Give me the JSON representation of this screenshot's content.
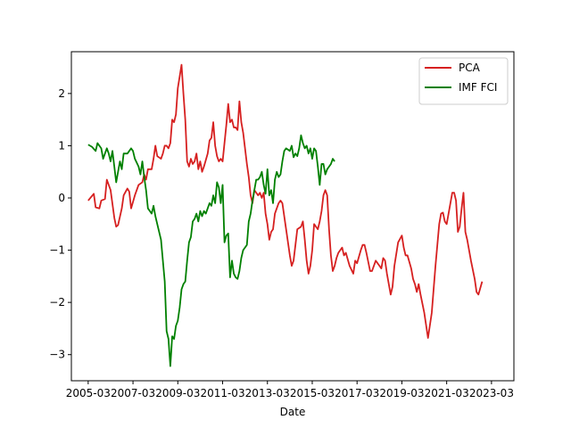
{
  "chart_data": {
    "type": "line",
    "title": "",
    "xlabel": "Date",
    "ylabel": "",
    "xlim": [
      "2004-06",
      "2024-03"
    ],
    "ylim": [
      -3.5,
      2.8
    ],
    "x_ticks": [
      "2005-03",
      "2007-03",
      "2009-03",
      "2011-03",
      "2013-03",
      "2015-03",
      "2017-03",
      "2019-03",
      "2021-03",
      "2023-03"
    ],
    "y_ticks": [
      -3,
      -2,
      -1,
      0,
      1,
      2
    ],
    "y_tick_labels": [
      "−3",
      "−2",
      "−1",
      "0",
      "1",
      "2"
    ],
    "grid": false,
    "legend_position": "top-right",
    "series": [
      {
        "name": "PCA",
        "color": "#d62020",
        "points": [
          [
            "2005-03",
            -0.05
          ],
          [
            "2005-06",
            0.08
          ],
          [
            "2005-07",
            -0.18
          ],
          [
            "2005-09",
            -0.2
          ],
          [
            "2005-10",
            -0.05
          ],
          [
            "2005-12",
            -0.02
          ],
          [
            "2006-01",
            0.35
          ],
          [
            "2006-03",
            0.15
          ],
          [
            "2006-05",
            -0.38
          ],
          [
            "2006-06",
            -0.55
          ],
          [
            "2006-07",
            -0.52
          ],
          [
            "2006-09",
            -0.2
          ],
          [
            "2006-10",
            0.05
          ],
          [
            "2006-12",
            0.18
          ],
          [
            "2007-01",
            0.12
          ],
          [
            "2007-02",
            -0.2
          ],
          [
            "2007-04",
            0.05
          ],
          [
            "2007-06",
            0.25
          ],
          [
            "2007-08",
            0.3
          ],
          [
            "2007-09",
            0.45
          ],
          [
            "2007-10",
            0.35
          ],
          [
            "2007-11",
            0.55
          ],
          [
            "2008-01",
            0.55
          ],
          [
            "2008-02",
            0.75
          ],
          [
            "2008-03",
            1.0
          ],
          [
            "2008-04",
            0.8
          ],
          [
            "2008-06",
            0.75
          ],
          [
            "2008-07",
            0.85
          ],
          [
            "2008-08",
            1.0
          ],
          [
            "2008-09",
            1.0
          ],
          [
            "2008-10",
            0.95
          ],
          [
            "2008-11",
            1.05
          ],
          [
            "2008-12",
            1.5
          ],
          [
            "2009-01",
            1.45
          ],
          [
            "2009-02",
            1.6
          ],
          [
            "2009-03",
            2.1
          ],
          [
            "2009-05",
            2.55
          ],
          [
            "2009-06",
            2.0
          ],
          [
            "2009-07",
            1.5
          ],
          [
            "2009-08",
            0.7
          ],
          [
            "2009-09",
            0.6
          ],
          [
            "2009-10",
            0.75
          ],
          [
            "2009-11",
            0.65
          ],
          [
            "2009-12",
            0.7
          ],
          [
            "2010-01",
            0.85
          ],
          [
            "2010-02",
            0.55
          ],
          [
            "2010-03",
            0.7
          ],
          [
            "2010-04",
            0.5
          ],
          [
            "2010-05",
            0.6
          ],
          [
            "2010-07",
            0.85
          ],
          [
            "2010-08",
            1.1
          ],
          [
            "2010-09",
            1.15
          ],
          [
            "2010-10",
            1.45
          ],
          [
            "2010-11",
            1.0
          ],
          [
            "2010-12",
            0.8
          ],
          [
            "2011-01",
            0.7
          ],
          [
            "2011-02",
            0.75
          ],
          [
            "2011-03",
            0.7
          ],
          [
            "2011-05",
            1.4
          ],
          [
            "2011-06",
            1.8
          ],
          [
            "2011-07",
            1.45
          ],
          [
            "2011-08",
            1.5
          ],
          [
            "2011-09",
            1.35
          ],
          [
            "2011-10",
            1.35
          ],
          [
            "2011-11",
            1.3
          ],
          [
            "2011-12",
            1.85
          ],
          [
            "2012-01",
            1.45
          ],
          [
            "2012-02",
            1.25
          ],
          [
            "2012-04",
            0.65
          ],
          [
            "2012-05",
            0.4
          ],
          [
            "2012-06",
            0.05
          ],
          [
            "2012-07",
            -0.1
          ],
          [
            "2012-08",
            0.15
          ],
          [
            "2012-09",
            0.1
          ],
          [
            "2012-10",
            0.05
          ],
          [
            "2012-11",
            0.1
          ],
          [
            "2012-12",
            0.0
          ],
          [
            "2013-01",
            0.1
          ],
          [
            "2013-02",
            -0.3
          ],
          [
            "2013-03",
            -0.5
          ],
          [
            "2013-04",
            -0.8
          ],
          [
            "2013-05",
            -0.65
          ],
          [
            "2013-06",
            -0.6
          ],
          [
            "2013-07",
            -0.3
          ],
          [
            "2013-09",
            -0.1
          ],
          [
            "2013-10",
            -0.05
          ],
          [
            "2013-11",
            -0.1
          ],
          [
            "2014-01",
            -0.6
          ],
          [
            "2014-03",
            -1.1
          ],
          [
            "2014-04",
            -1.3
          ],
          [
            "2014-05",
            -1.2
          ],
          [
            "2014-06",
            -0.9
          ],
          [
            "2014-07",
            -0.6
          ],
          [
            "2014-09",
            -0.55
          ],
          [
            "2014-10",
            -0.45
          ],
          [
            "2014-11",
            -0.8
          ],
          [
            "2014-12",
            -1.2
          ],
          [
            "2015-01",
            -1.45
          ],
          [
            "2015-02",
            -1.3
          ],
          [
            "2015-03",
            -1.0
          ],
          [
            "2015-04",
            -0.5
          ],
          [
            "2015-06",
            -0.6
          ],
          [
            "2015-07",
            -0.45
          ],
          [
            "2015-08",
            -0.25
          ],
          [
            "2015-09",
            0.05
          ],
          [
            "2015-10",
            0.15
          ],
          [
            "2015-11",
            0.05
          ],
          [
            "2015-12",
            -0.6
          ],
          [
            "2016-01",
            -1.1
          ],
          [
            "2016-02",
            -1.4
          ],
          [
            "2016-03",
            -1.3
          ],
          [
            "2016-04",
            -1.15
          ],
          [
            "2016-05",
            -1.05
          ],
          [
            "2016-07",
            -0.95
          ],
          [
            "2016-08",
            -1.1
          ],
          [
            "2016-09",
            -1.05
          ],
          [
            "2016-11",
            -1.3
          ],
          [
            "2017-01",
            -1.45
          ],
          [
            "2017-02",
            -1.2
          ],
          [
            "2017-03",
            -1.25
          ],
          [
            "2017-05",
            -1.0
          ],
          [
            "2017-06",
            -0.9
          ],
          [
            "2017-07",
            -0.9
          ],
          [
            "2017-08",
            -1.05
          ],
          [
            "2017-10",
            -1.4
          ],
          [
            "2017-11",
            -1.4
          ],
          [
            "2018-01",
            -1.2
          ],
          [
            "2018-03",
            -1.3
          ],
          [
            "2018-04",
            -1.35
          ],
          [
            "2018-05",
            -1.15
          ],
          [
            "2018-06",
            -1.2
          ],
          [
            "2018-07",
            -1.45
          ],
          [
            "2018-08",
            -1.65
          ],
          [
            "2018-09",
            -1.85
          ],
          [
            "2018-10",
            -1.7
          ],
          [
            "2018-11",
            -1.3
          ],
          [
            "2019-01",
            -0.85
          ],
          [
            "2019-03",
            -0.72
          ],
          [
            "2019-04",
            -0.95
          ],
          [
            "2019-05",
            -1.1
          ],
          [
            "2019-06",
            -1.1
          ],
          [
            "2019-08",
            -1.35
          ],
          [
            "2019-09",
            -1.55
          ],
          [
            "2019-10",
            -1.65
          ],
          [
            "2019-11",
            -1.8
          ],
          [
            "2019-12",
            -1.65
          ],
          [
            "2020-01",
            -1.85
          ],
          [
            "2020-03",
            -2.2
          ],
          [
            "2020-05",
            -2.68
          ],
          [
            "2020-07",
            -2.2
          ],
          [
            "2020-09",
            -1.3
          ],
          [
            "2020-11",
            -0.5
          ],
          [
            "2020-12",
            -0.3
          ],
          [
            "2021-01",
            -0.28
          ],
          [
            "2021-02",
            -0.45
          ],
          [
            "2021-03",
            -0.5
          ],
          [
            "2021-05",
            -0.1
          ],
          [
            "2021-06",
            0.1
          ],
          [
            "2021-07",
            0.1
          ],
          [
            "2021-08",
            -0.05
          ],
          [
            "2021-09",
            -0.65
          ],
          [
            "2021-10",
            -0.55
          ],
          [
            "2021-11",
            -0.2
          ],
          [
            "2021-12",
            0.1
          ],
          [
            "2022-01",
            -0.65
          ],
          [
            "2022-02",
            -0.8
          ],
          [
            "2022-04",
            -1.2
          ],
          [
            "2022-06",
            -1.55
          ],
          [
            "2022-07",
            -1.8
          ],
          [
            "2022-08",
            -1.85
          ],
          [
            "2022-10",
            -1.6
          ]
        ]
      },
      {
        "name": "IMF FCI",
        "color": "#008000",
        "points": [
          [
            "2005-03",
            1.02
          ],
          [
            "2005-05",
            0.98
          ],
          [
            "2005-07",
            0.9
          ],
          [
            "2005-08",
            1.05
          ],
          [
            "2005-10",
            0.95
          ],
          [
            "2005-11",
            0.75
          ],
          [
            "2006-01",
            0.95
          ],
          [
            "2006-02",
            0.85
          ],
          [
            "2006-03",
            0.7
          ],
          [
            "2006-04",
            0.9
          ],
          [
            "2006-05",
            0.6
          ],
          [
            "2006-06",
            0.3
          ],
          [
            "2006-08",
            0.7
          ],
          [
            "2006-09",
            0.55
          ],
          [
            "2006-10",
            0.85
          ],
          [
            "2006-12",
            0.85
          ],
          [
            "2007-01",
            0.9
          ],
          [
            "2007-02",
            0.95
          ],
          [
            "2007-03",
            0.9
          ],
          [
            "2007-04",
            0.75
          ],
          [
            "2007-06",
            0.6
          ],
          [
            "2007-07",
            0.45
          ],
          [
            "2007-08",
            0.7
          ],
          [
            "2007-09",
            0.4
          ],
          [
            "2007-10",
            0.15
          ],
          [
            "2007-11",
            -0.2
          ],
          [
            "2007-12",
            -0.25
          ],
          [
            "2008-01",
            -0.3
          ],
          [
            "2008-02",
            -0.15
          ],
          [
            "2008-03",
            -0.35
          ],
          [
            "2008-04",
            -0.5
          ],
          [
            "2008-06",
            -0.8
          ],
          [
            "2008-08",
            -1.6
          ],
          [
            "2008-09",
            -2.55
          ],
          [
            "2008-10",
            -2.7
          ],
          [
            "2008-11",
            -3.22
          ],
          [
            "2008-12",
            -2.65
          ],
          [
            "2009-01",
            -2.7
          ],
          [
            "2009-02",
            -2.45
          ],
          [
            "2009-03",
            -2.35
          ],
          [
            "2009-04",
            -2.1
          ],
          [
            "2009-05",
            -1.75
          ],
          [
            "2009-06",
            -1.65
          ],
          [
            "2009-07",
            -1.6
          ],
          [
            "2009-08",
            -1.2
          ],
          [
            "2009-09",
            -0.85
          ],
          [
            "2009-10",
            -0.75
          ],
          [
            "2009-11",
            -0.45
          ],
          [
            "2009-12",
            -0.4
          ],
          [
            "2010-01",
            -0.3
          ],
          [
            "2010-02",
            -0.45
          ],
          [
            "2010-03",
            -0.25
          ],
          [
            "2010-04",
            -0.35
          ],
          [
            "2010-05",
            -0.25
          ],
          [
            "2010-06",
            -0.3
          ],
          [
            "2010-07",
            -0.2
          ],
          [
            "2010-08",
            -0.1
          ],
          [
            "2010-09",
            -0.15
          ],
          [
            "2010-10",
            0.05
          ],
          [
            "2010-11",
            -0.1
          ],
          [
            "2010-12",
            0.3
          ],
          [
            "2011-01",
            0.2
          ],
          [
            "2011-02",
            -0.1
          ],
          [
            "2011-03",
            0.25
          ],
          [
            "2011-04",
            -0.85
          ],
          [
            "2011-05",
            -0.72
          ],
          [
            "2011-06",
            -0.68
          ],
          [
            "2011-07",
            -1.52
          ],
          [
            "2011-08",
            -1.2
          ],
          [
            "2011-09",
            -1.45
          ],
          [
            "2011-10",
            -1.52
          ],
          [
            "2011-11",
            -1.55
          ],
          [
            "2011-12",
            -1.4
          ],
          [
            "2012-01",
            -1.15
          ],
          [
            "2012-02",
            -1.0
          ],
          [
            "2012-03",
            -0.95
          ],
          [
            "2012-04",
            -0.9
          ],
          [
            "2012-05",
            -0.45
          ],
          [
            "2012-06",
            -0.3
          ],
          [
            "2012-07",
            -0.05
          ],
          [
            "2012-08",
            0.15
          ],
          [
            "2012-09",
            0.35
          ],
          [
            "2012-10",
            0.35
          ],
          [
            "2012-11",
            0.4
          ],
          [
            "2012-12",
            0.5
          ],
          [
            "2013-01",
            0.25
          ],
          [
            "2013-02",
            0.08
          ],
          [
            "2013-03",
            0.55
          ],
          [
            "2013-04",
            0.05
          ],
          [
            "2013-05",
            0.15
          ],
          [
            "2013-06",
            -0.1
          ],
          [
            "2013-07",
            0.35
          ],
          [
            "2013-08",
            0.5
          ],
          [
            "2013-09",
            0.4
          ],
          [
            "2013-10",
            0.45
          ],
          [
            "2013-11",
            0.7
          ],
          [
            "2013-12",
            0.9
          ],
          [
            "2014-01",
            0.95
          ],
          [
            "2014-03",
            0.9
          ],
          [
            "2014-04",
            1.0
          ],
          [
            "2014-05",
            0.78
          ],
          [
            "2014-06",
            0.85
          ],
          [
            "2014-07",
            0.8
          ],
          [
            "2014-08",
            0.95
          ],
          [
            "2014-09",
            1.2
          ],
          [
            "2014-10",
            1.05
          ],
          [
            "2014-11",
            0.95
          ],
          [
            "2014-12",
            1.0
          ],
          [
            "2015-01",
            0.85
          ],
          [
            "2015-02",
            0.95
          ],
          [
            "2015-03",
            0.75
          ],
          [
            "2015-04",
            0.95
          ],
          [
            "2015-05",
            0.9
          ],
          [
            "2015-06",
            0.6
          ],
          [
            "2015-07",
            0.25
          ],
          [
            "2015-08",
            0.65
          ],
          [
            "2015-09",
            0.65
          ],
          [
            "2015-10",
            0.45
          ],
          [
            "2015-11",
            0.55
          ],
          [
            "2015-12",
            0.6
          ],
          [
            "2016-01",
            0.65
          ],
          [
            "2016-02",
            0.75
          ],
          [
            "2016-03",
            0.7
          ]
        ]
      }
    ]
  }
}
